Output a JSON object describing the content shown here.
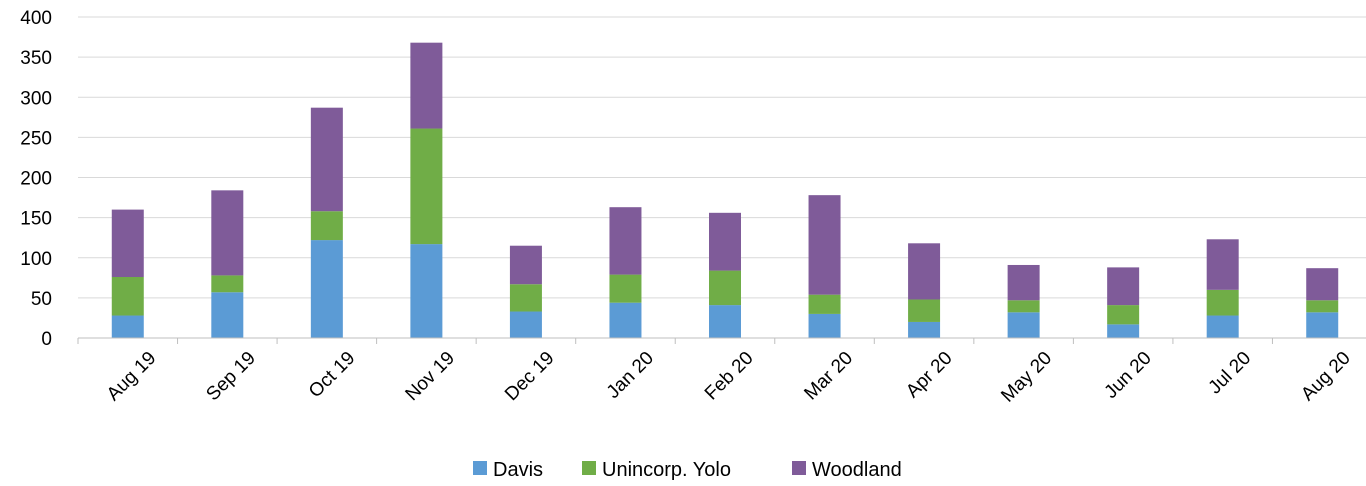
{
  "chart_data": {
    "type": "bar",
    "stacked": true,
    "categories": [
      "Aug 19",
      "Sep 19",
      "Oct 19",
      "Nov 19",
      "Dec 19",
      "Jan 20",
      "Feb 20",
      "Mar 20",
      "Apr 20",
      "May 20",
      "Jun 20",
      "Jul 20",
      "Aug 20"
    ],
    "series": [
      {
        "name": "Davis",
        "color": "#5B9BD5",
        "values": [
          28,
          57,
          122,
          117,
          33,
          44,
          41,
          30,
          20,
          32,
          17,
          28,
          32
        ]
      },
      {
        "name": "Unincorp. Yolo",
        "color": "#70AD47",
        "values": [
          48,
          21,
          36,
          144,
          34,
          35,
          43,
          24,
          28,
          15,
          24,
          32,
          15
        ]
      },
      {
        "name": "Woodland",
        "color": "#7F5B99",
        "values": [
          84,
          106,
          129,
          107,
          48,
          84,
          72,
          124,
          70,
          44,
          47,
          63,
          40
        ]
      }
    ],
    "ylim": [
      0,
      400
    ],
    "yticks": [
      0,
      50,
      100,
      150,
      200,
      250,
      300,
      350,
      400
    ],
    "title": "",
    "xlabel": "",
    "ylabel": "",
    "grid": true,
    "legend_position": "bottom"
  }
}
